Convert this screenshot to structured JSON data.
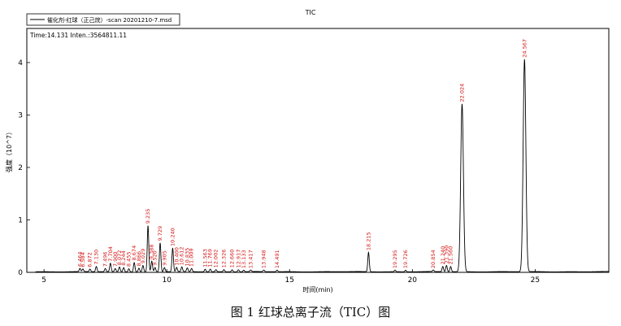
{
  "figure": {
    "caption": "图 1  红球总离子流（TIC）图"
  },
  "chart_data": {
    "type": "line",
    "title": "TIC",
    "legend": "催化剂-红球（正己烷）-scan 20201210-7.msd",
    "info": "Time:14.131  Inten.:3564811.11",
    "xlabel": "时间(min)",
    "ylabel": "强度（10^7）",
    "xlim": [
      4.3,
      28
    ],
    "ylim": [
      0,
      4.65
    ],
    "xticks": [
      5,
      10,
      15,
      20,
      25
    ],
    "yticks": [
      0,
      1,
      2,
      3,
      4
    ],
    "colors": {
      "line": "#000000",
      "labels": "#d61a1a"
    },
    "peaks": [
      {
        "label": "6.464",
        "x": 6.464,
        "y": 0.06
      },
      {
        "label": "6.584",
        "x": 6.584,
        "y": 0.05
      },
      {
        "label": "6.872",
        "x": 6.872,
        "y": 0.05
      },
      {
        "label": "7.130",
        "x": 7.13,
        "y": 0.1
      },
      {
        "label": "7.496",
        "x": 7.496,
        "y": 0.06
      },
      {
        "label": "7.704",
        "x": 7.704,
        "y": 0.16
      },
      {
        "label": "7.900",
        "x": 7.9,
        "y": 0.06
      },
      {
        "label": "8.072",
        "x": 8.072,
        "y": 0.09
      },
      {
        "label": "8.244",
        "x": 8.244,
        "y": 0.08
      },
      {
        "label": "8.455",
        "x": 8.455,
        "y": 0.06
      },
      {
        "label": "8.674",
        "x": 8.674,
        "y": 0.18
      },
      {
        "label": "8.866",
        "x": 8.866,
        "y": 0.07
      },
      {
        "label": "9.029",
        "x": 9.029,
        "y": 0.12
      },
      {
        "label": "9.235",
        "x": 9.235,
        "y": 0.88
      },
      {
        "label": "9.388",
        "x": 9.388,
        "y": 0.2
      },
      {
        "label": "9.520",
        "x": 9.52,
        "y": 0.08
      },
      {
        "label": "9.729",
        "x": 9.729,
        "y": 0.55
      },
      {
        "label": "9.905",
        "x": 9.905,
        "y": 0.08
      },
      {
        "label": "10.240",
        "x": 10.24,
        "y": 0.45
      },
      {
        "label": "10.400",
        "x": 10.4,
        "y": 0.08
      },
      {
        "label": "10.612",
        "x": 10.612,
        "y": 0.09
      },
      {
        "label": "10.835",
        "x": 10.835,
        "y": 0.07
      },
      {
        "label": "11.009",
        "x": 11.009,
        "y": 0.06
      },
      {
        "label": "11.563",
        "x": 11.563,
        "y": 0.05
      },
      {
        "label": "11.769",
        "x": 11.769,
        "y": 0.05
      },
      {
        "label": "12.002",
        "x": 12.002,
        "y": 0.04
      },
      {
        "label": "12.326",
        "x": 12.326,
        "y": 0.04
      },
      {
        "label": "12.660",
        "x": 12.66,
        "y": 0.04
      },
      {
        "label": "12.917",
        "x": 12.917,
        "y": 0.04
      },
      {
        "label": "13.133",
        "x": 13.133,
        "y": 0.03
      },
      {
        "label": "13.417",
        "x": 13.417,
        "y": 0.03
      },
      {
        "label": "13.948",
        "x": 13.948,
        "y": 0.03
      },
      {
        "label": "14.491",
        "x": 14.491,
        "y": 0.03
      },
      {
        "label": "18.215",
        "x": 18.215,
        "y": 0.37
      },
      {
        "label": "19.295",
        "x": 19.295,
        "y": 0.03
      },
      {
        "label": "19.726",
        "x": 19.726,
        "y": 0.03
      },
      {
        "label": "20.854",
        "x": 20.854,
        "y": 0.03
      },
      {
        "label": "21.240",
        "x": 21.24,
        "y": 0.1
      },
      {
        "label": "21.390",
        "x": 21.39,
        "y": 0.12
      },
      {
        "label": "21.560",
        "x": 21.56,
        "y": 0.1
      },
      {
        "label": "22.024",
        "x": 22.024,
        "y": 3.2
      },
      {
        "label": "24.567",
        "x": 24.567,
        "y": 4.05
      }
    ]
  }
}
